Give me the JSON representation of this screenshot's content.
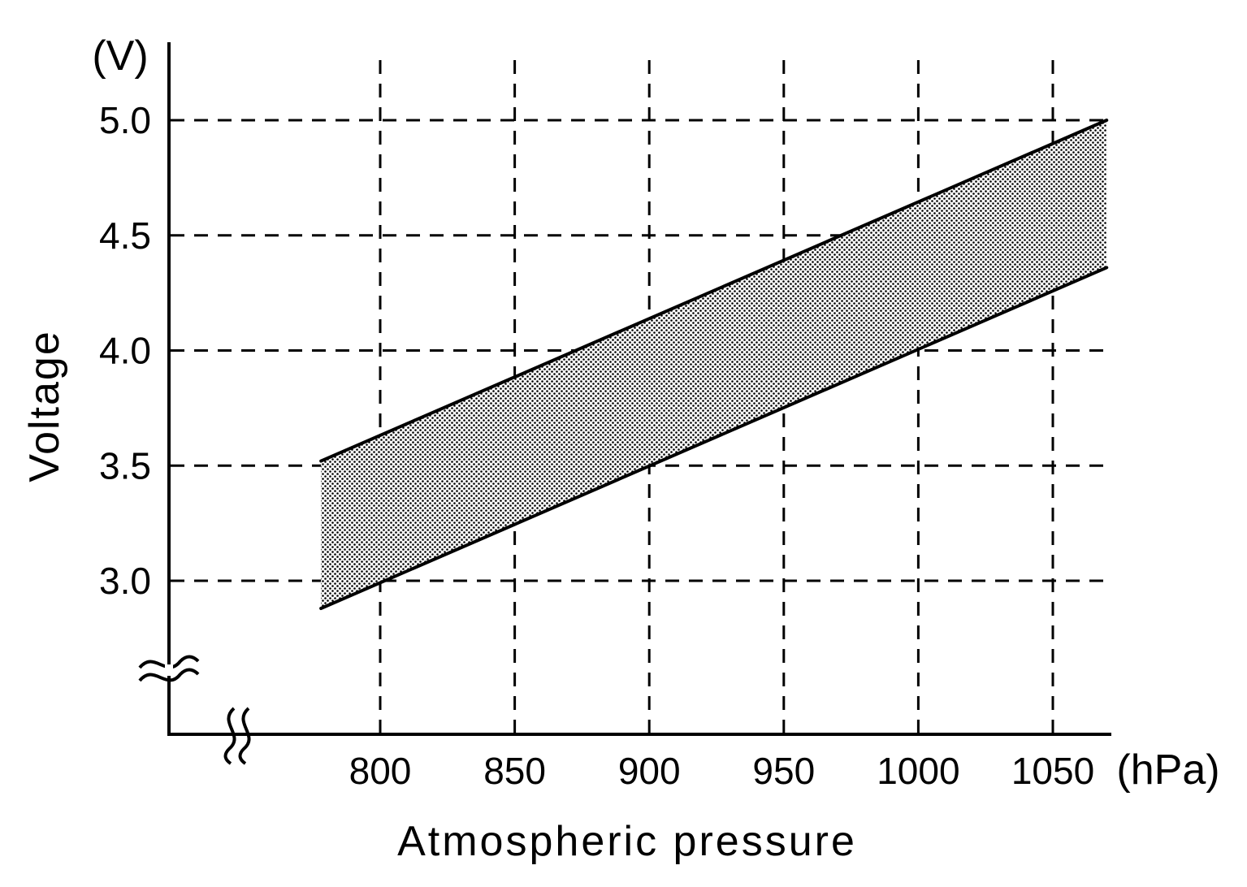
{
  "chart_data": {
    "type": "area",
    "title": "",
    "xlabel": "Atmospheric pressure",
    "ylabel": "Voltage",
    "x_unit": "(hPa)",
    "y_unit": "(V)",
    "x_ticks": [
      "800",
      "850",
      "900",
      "950",
      "1000",
      "1050"
    ],
    "x_tick_values": [
      800,
      850,
      900,
      950,
      1000,
      1050
    ],
    "y_ticks": [
      "3.0",
      "3.5",
      "4.0",
      "4.5",
      "5.0"
    ],
    "y_tick_values": [
      3.0,
      3.5,
      4.0,
      4.5,
      5.0
    ],
    "xlim": [
      800,
      1075
    ],
    "ylim": [
      3.0,
      5.0
    ],
    "grid": true,
    "grid_style": "dashed",
    "axis_breaks": true,
    "series": [
      {
        "role": "upper-bound",
        "x": [
          778,
          1070
        ],
        "y": [
          3.52,
          5.0
        ]
      },
      {
        "role": "lower-bound",
        "x": [
          778,
          1070
        ],
        "y": [
          2.88,
          4.36
        ]
      }
    ],
    "band_fill": "dotted",
    "colors": {
      "line": "#000000",
      "grid": "#000000",
      "background": "#ffffff"
    }
  }
}
